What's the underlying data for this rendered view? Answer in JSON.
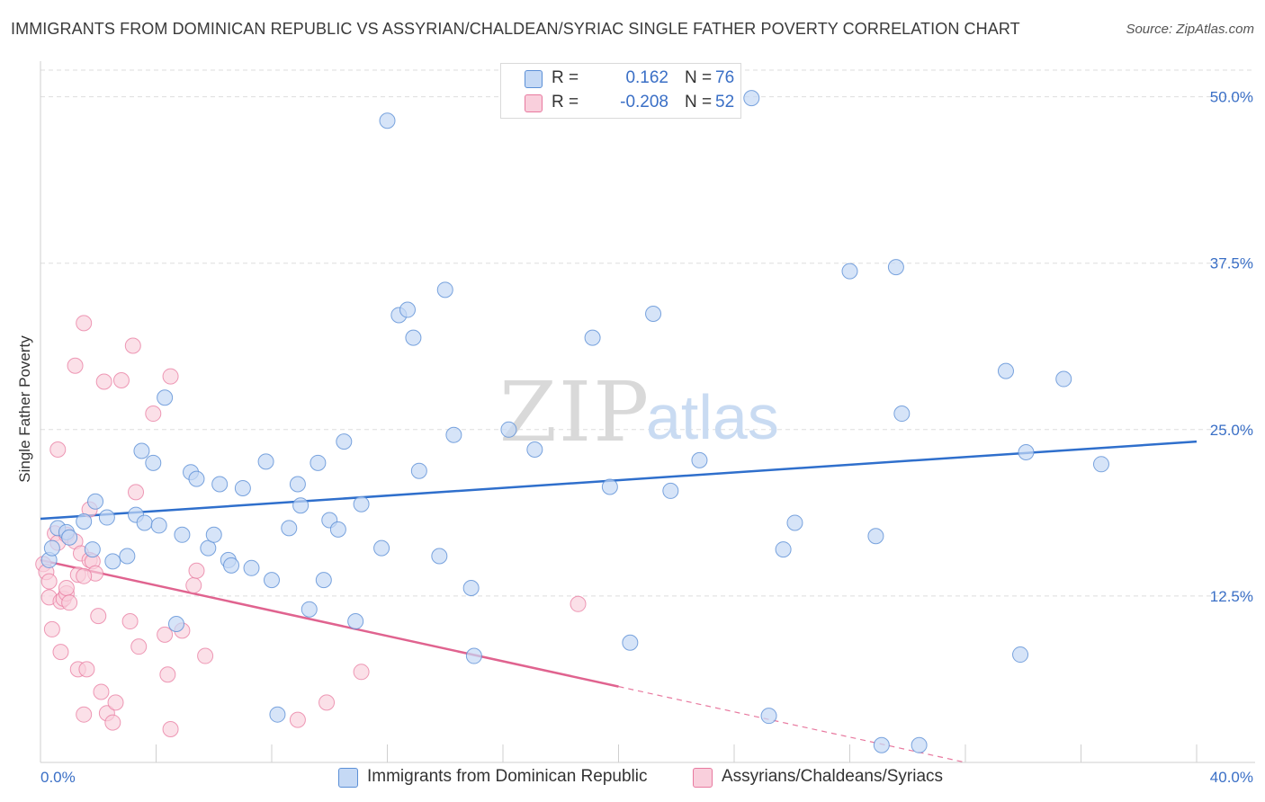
{
  "title": "IMMIGRANTS FROM DOMINICAN REPUBLIC VS ASSYRIAN/CHALDEAN/SYRIAC SINGLE FATHER POVERTY CORRELATION CHART",
  "source": "Source: ZipAtlas.com",
  "watermark": {
    "zip": "ZIP",
    "atlas": "atlas"
  },
  "legend": {
    "rows": [
      {
        "r_label": "R =",
        "r_value": "0.162",
        "n_label": "N =",
        "n_value": "76"
      },
      {
        "r_label": "R =",
        "r_value": "-0.208",
        "n_label": "N =",
        "n_value": "52"
      }
    ]
  },
  "bottom_legend": {
    "series1": "Immigrants from Dominican Republic",
    "series2": "Assyrians/Chaldeans/Syriacs"
  },
  "chart_data": {
    "type": "scatter",
    "xlabel": "",
    "ylabel": "Single Father Poverty",
    "xlim": [
      0,
      40
    ],
    "ylim": [
      0,
      52
    ],
    "x_tick_labels": [
      "0.0%",
      "40.0%"
    ],
    "y_ticks": [
      12.5,
      25,
      37.5,
      50
    ],
    "y_tick_labels": [
      "12.5%",
      "25.0%",
      "37.5%",
      "50.0%"
    ],
    "grid": true,
    "colors": {
      "series1": "#5b8fd6",
      "series1_fill": "#c5d9f5",
      "series2": "#e8799f",
      "series2_fill": "#f9cfdc",
      "text_blue": "#3a6fc6"
    },
    "series": [
      {
        "name": "Immigrants from Dominican Republic",
        "trend": {
          "x": [
            0,
            40
          ],
          "y": [
            18.3,
            24.1
          ]
        },
        "points": [
          [
            0.3,
            15.2
          ],
          [
            0.4,
            16.1
          ],
          [
            0.6,
            17.6
          ],
          [
            0.9,
            17.3
          ],
          [
            1.0,
            16.9
          ],
          [
            1.5,
            18.1
          ],
          [
            1.8,
            16.0
          ],
          [
            1.9,
            19.6
          ],
          [
            2.3,
            18.4
          ],
          [
            2.5,
            15.1
          ],
          [
            3.0,
            15.5
          ],
          [
            3.3,
            18.6
          ],
          [
            3.5,
            23.4
          ],
          [
            3.6,
            18.0
          ],
          [
            3.9,
            22.5
          ],
          [
            4.1,
            17.8
          ],
          [
            4.3,
            27.4
          ],
          [
            4.7,
            10.4
          ],
          [
            4.9,
            17.1
          ],
          [
            5.2,
            21.8
          ],
          [
            5.4,
            21.3
          ],
          [
            5.8,
            16.1
          ],
          [
            6.0,
            17.1
          ],
          [
            6.2,
            20.9
          ],
          [
            6.5,
            15.2
          ],
          [
            6.6,
            14.8
          ],
          [
            7.0,
            20.6
          ],
          [
            7.3,
            14.6
          ],
          [
            7.8,
            22.6
          ],
          [
            8.0,
            13.7
          ],
          [
            8.2,
            3.6
          ],
          [
            8.6,
            17.6
          ],
          [
            8.9,
            20.9
          ],
          [
            9.0,
            19.3
          ],
          [
            9.3,
            11.5
          ],
          [
            9.6,
            22.5
          ],
          [
            9.8,
            13.7
          ],
          [
            10.0,
            18.2
          ],
          [
            10.3,
            17.5
          ],
          [
            10.5,
            24.1
          ],
          [
            10.9,
            10.6
          ],
          [
            11.1,
            19.4
          ],
          [
            11.8,
            16.1
          ],
          [
            12.0,
            48.2
          ],
          [
            12.4,
            33.6
          ],
          [
            12.7,
            34.0
          ],
          [
            12.9,
            31.9
          ],
          [
            13.1,
            21.9
          ],
          [
            13.8,
            15.5
          ],
          [
            14.0,
            35.5
          ],
          [
            14.3,
            24.6
          ],
          [
            14.9,
            13.1
          ],
          [
            15.0,
            8.0
          ],
          [
            16.2,
            25.0
          ],
          [
            17.1,
            23.5
          ],
          [
            19.1,
            31.9
          ],
          [
            19.7,
            20.7
          ],
          [
            20.4,
            9.0
          ],
          [
            21.2,
            33.7
          ],
          [
            21.8,
            20.4
          ],
          [
            22.8,
            22.7
          ],
          [
            24.6,
            49.9
          ],
          [
            25.2,
            3.5
          ],
          [
            25.7,
            16.0
          ],
          [
            26.1,
            18.0
          ],
          [
            28.0,
            36.9
          ],
          [
            28.9,
            17.0
          ],
          [
            29.1,
            1.3
          ],
          [
            29.6,
            37.2
          ],
          [
            29.8,
            26.2
          ],
          [
            30.4,
            1.3
          ],
          [
            33.4,
            29.4
          ],
          [
            33.9,
            8.1
          ],
          [
            34.1,
            23.3
          ],
          [
            35.4,
            28.8
          ],
          [
            36.7,
            22.4
          ]
        ]
      },
      {
        "name": "Assyrians/Chaldeans/Syriacs",
        "trend": {
          "x": [
            0,
            20
          ],
          "y": [
            15.2,
            5.7
          ]
        },
        "trend_dashed": {
          "x": [
            20,
            32
          ],
          "y": [
            5.7,
            0
          ]
        },
        "points": [
          [
            0.1,
            14.9
          ],
          [
            0.2,
            14.3
          ],
          [
            0.3,
            13.6
          ],
          [
            0.3,
            12.4
          ],
          [
            0.4,
            10.0
          ],
          [
            0.5,
            17.2
          ],
          [
            0.6,
            23.5
          ],
          [
            0.6,
            16.5
          ],
          [
            0.7,
            12.1
          ],
          [
            0.7,
            8.3
          ],
          [
            0.8,
            12.3
          ],
          [
            0.9,
            12.7
          ],
          [
            0.9,
            17.1
          ],
          [
            0.9,
            13.1
          ],
          [
            1.0,
            12.0
          ],
          [
            1.2,
            29.8
          ],
          [
            1.2,
            16.6
          ],
          [
            1.3,
            14.1
          ],
          [
            1.3,
            7.0
          ],
          [
            1.4,
            15.7
          ],
          [
            1.5,
            3.6
          ],
          [
            1.5,
            33.0
          ],
          [
            1.6,
            7.0
          ],
          [
            1.7,
            15.2
          ],
          [
            1.7,
            19.0
          ],
          [
            1.8,
            15.1
          ],
          [
            1.9,
            14.2
          ],
          [
            2.0,
            11.0
          ],
          [
            2.1,
            5.3
          ],
          [
            2.2,
            28.6
          ],
          [
            2.3,
            3.7
          ],
          [
            2.5,
            3.0
          ],
          [
            2.6,
            4.5
          ],
          [
            2.8,
            28.7
          ],
          [
            3.1,
            10.6
          ],
          [
            3.2,
            31.3
          ],
          [
            3.3,
            20.3
          ],
          [
            3.4,
            8.7
          ],
          [
            3.9,
            26.2
          ],
          [
            4.3,
            9.6
          ],
          [
            4.4,
            6.6
          ],
          [
            4.5,
            29.0
          ],
          [
            4.5,
            2.5
          ],
          [
            4.9,
            9.9
          ],
          [
            5.3,
            13.3
          ],
          [
            5.4,
            14.4
          ],
          [
            5.7,
            8.0
          ],
          [
            8.9,
            3.2
          ],
          [
            9.9,
            4.5
          ],
          [
            11.1,
            6.8
          ],
          [
            18.6,
            11.9
          ],
          [
            1.5,
            14.0
          ]
        ]
      }
    ]
  }
}
